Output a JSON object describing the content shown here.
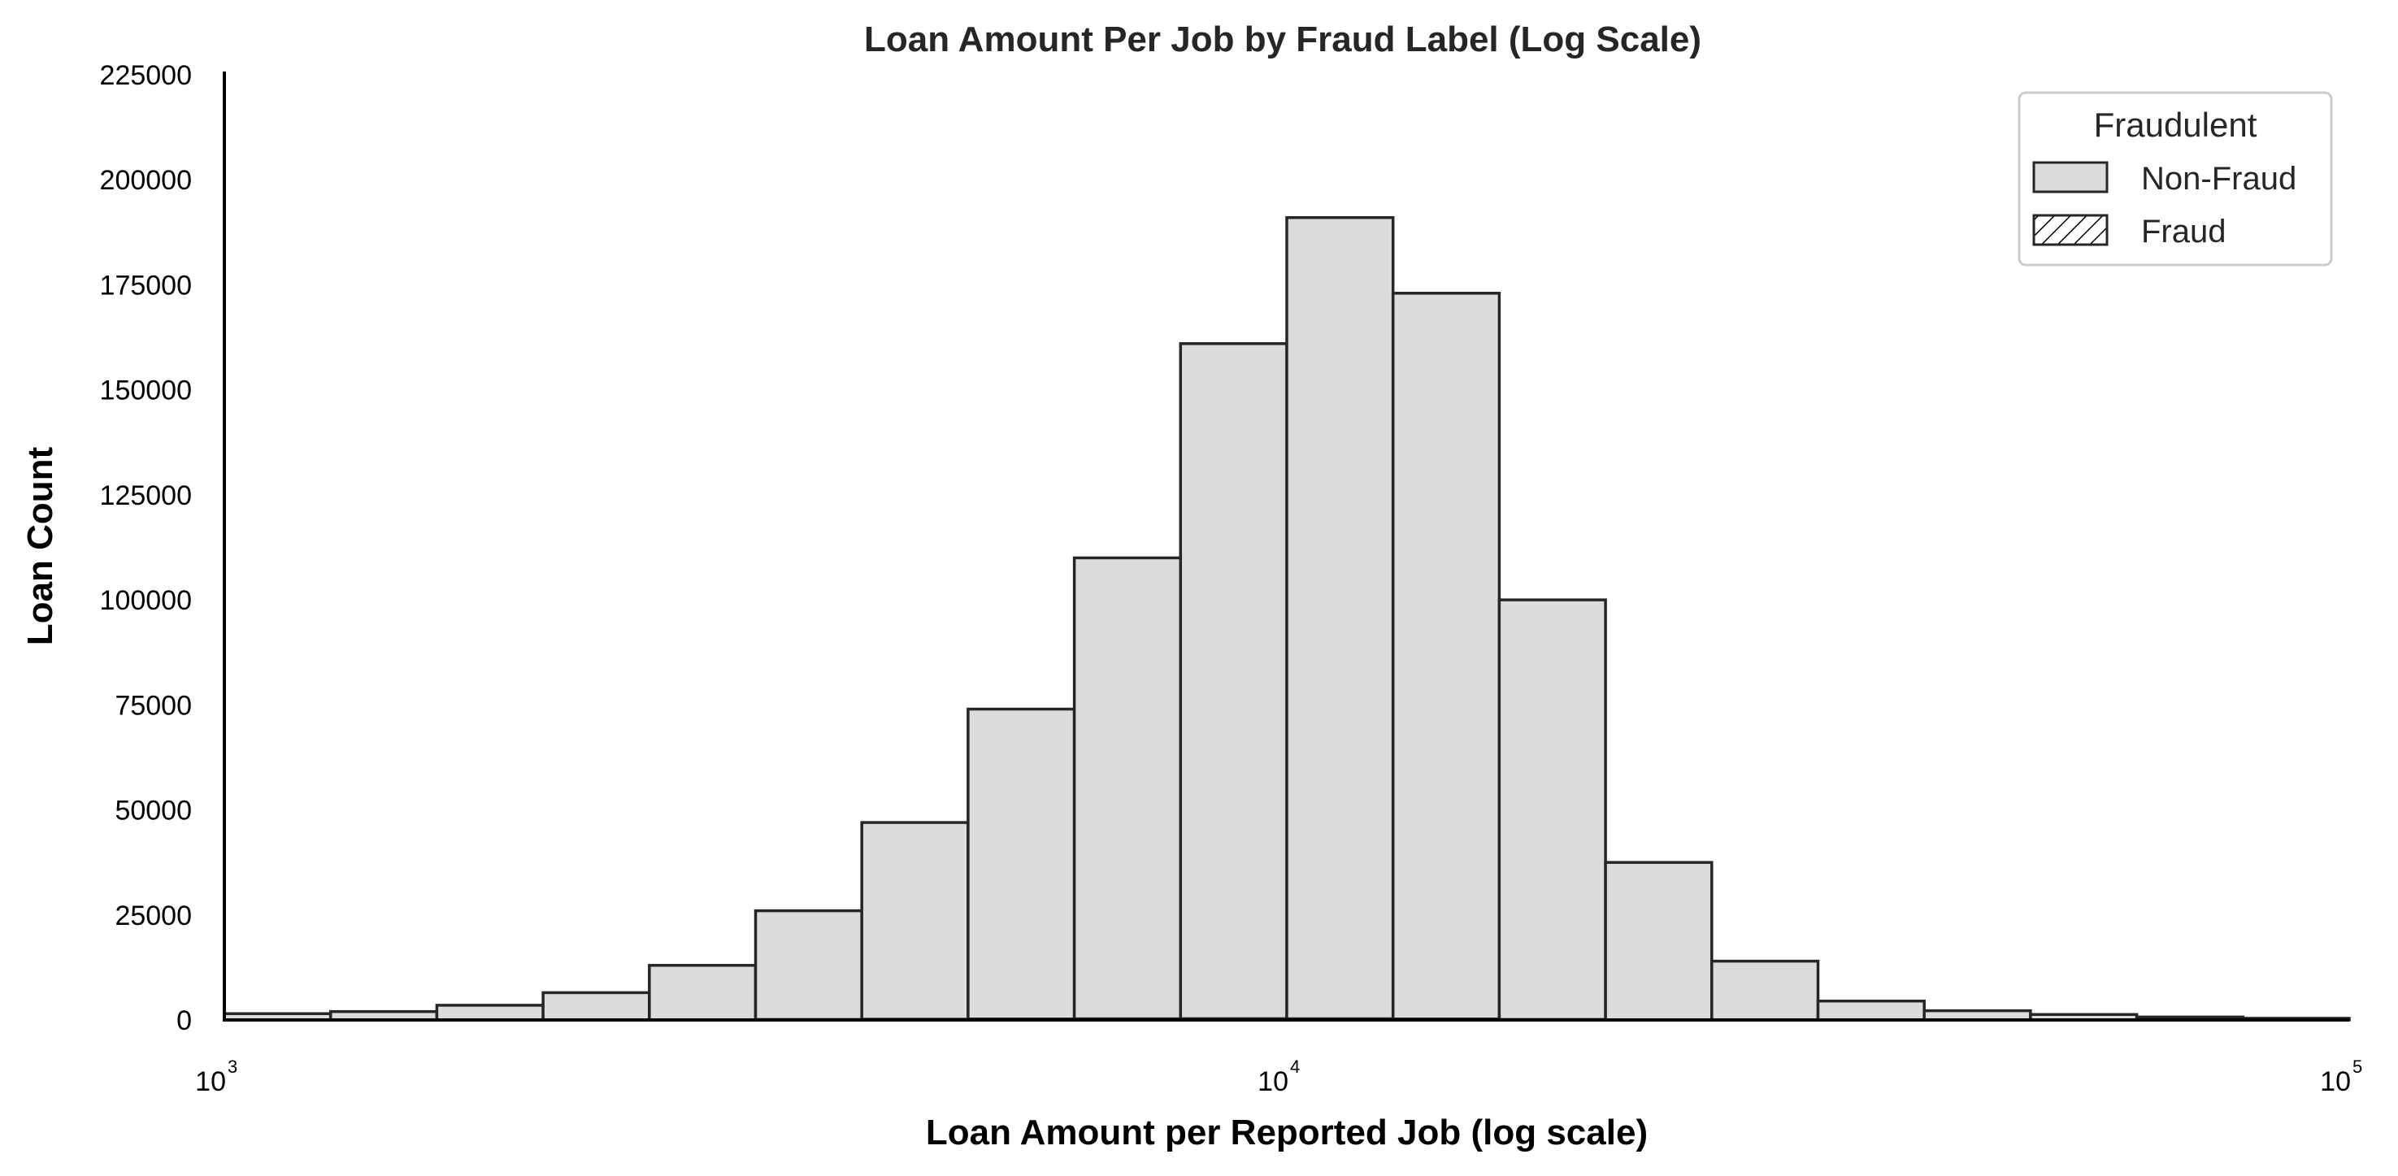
{
  "chart_data": {
    "type": "bar",
    "title": "Loan Amount Per Job by Fraud Label (Log Scale)",
    "xlabel": "Loan Amount per Reported Job (log scale)",
    "ylabel": "Loan Count",
    "xscale": "log",
    "xlim": [
      1000,
      100000
    ],
    "ylim": [
      0,
      225000
    ],
    "x_ticks": [
      {
        "base": "10",
        "exp": "3",
        "value": 1000
      },
      {
        "base": "10",
        "exp": "4",
        "value": 10000
      },
      {
        "base": "10",
        "exp": "5",
        "value": 100000
      }
    ],
    "y_ticks": [
      "0",
      "25000",
      "50000",
      "75000",
      "100000",
      "125000",
      "150000",
      "175000",
      "200000",
      "225000"
    ],
    "bin_edges": [
      1000,
      1258.9,
      1584.9,
      1995.3,
      2511.9,
      3162.3,
      3981.1,
      5011.9,
      6309.6,
      7943.3,
      10000,
      12589.3,
      15848.9,
      19952.6,
      25118.9,
      31622.8,
      39810.7,
      50118.7,
      63095.7,
      79432.8,
      100000
    ],
    "series": [
      {
        "name": "Non-Fraud",
        "color": "#dcdcdc",
        "hatch": "none",
        "values": [
          1500,
          2000,
          3500,
          6500,
          13000,
          26000,
          47000,
          74000,
          110000,
          161000,
          191000,
          173000,
          100000,
          37500,
          14000,
          4500,
          2200,
          1300,
          700,
          400
        ]
      },
      {
        "name": "Fraud",
        "color": "#ffffff",
        "hatch": "diagonal",
        "values": [
          50,
          60,
          80,
          120,
          180,
          250,
          320,
          380,
          420,
          450,
          430,
          380,
          260,
          150,
          80,
          40,
          20,
          10,
          5,
          2
        ]
      }
    ],
    "legend": {
      "title": "Fraudulent",
      "position": "top-right"
    },
    "grid": false,
    "edge_color": "#262626"
  }
}
